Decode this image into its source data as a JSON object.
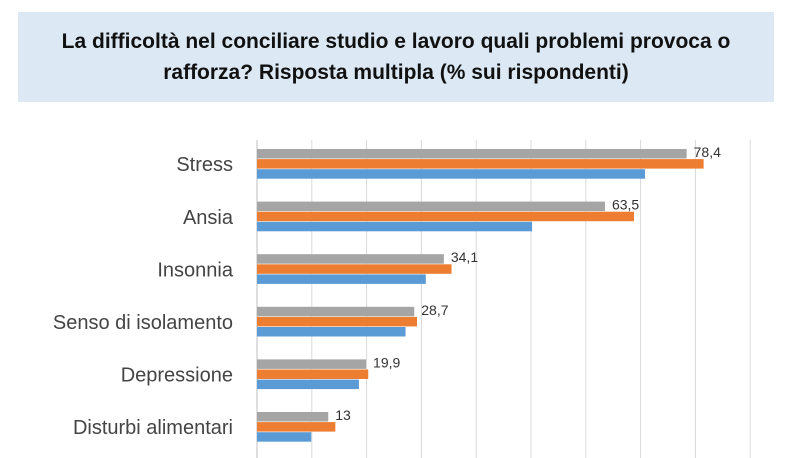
{
  "title": "La difficoltà nel conciliare studio e lavoro quali problemi provoca o rafforza? Risposta multipla (% sui rispondenti)",
  "chart_data": {
    "type": "bar",
    "orientation": "horizontal",
    "title": "La difficoltà nel conciliare studio e lavoro quali problemi provoca o rafforza? Risposta multipla (% sui rispondenti)",
    "categories": [
      "Stress",
      "Ansia",
      "Insonnia",
      "Senso di isolamento",
      "Depressione",
      "Disturbi alimentari"
    ],
    "series": [
      {
        "color": "#a5a5a5",
        "values": [
          78.4,
          63.5,
          34.1,
          28.7,
          19.9,
          13
        ],
        "labels": [
          "78,4",
          "63,5",
          "34,1",
          "28,7",
          "19,9",
          "13"
        ]
      },
      {
        "color": "#ed7d31",
        "values": [
          81.5,
          68.8,
          35.5,
          29.2,
          20.3,
          14.3
        ]
      },
      {
        "color": "#5b9bd5",
        "values": [
          70.8,
          50.2,
          30.8,
          27.1,
          18.6,
          9.9
        ]
      }
    ],
    "xlim": [
      0,
      100
    ],
    "grid": true,
    "legend": "none"
  }
}
